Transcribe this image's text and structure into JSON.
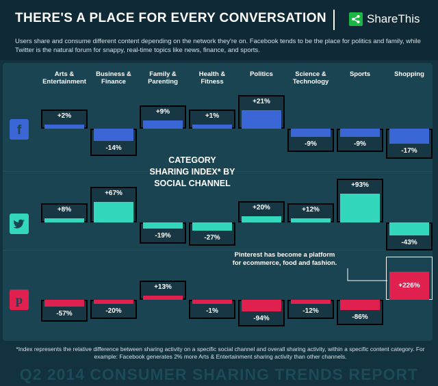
{
  "header": {
    "title": "THERE'S A PLACE FOR EVERY CONVERSATION",
    "brand_name": "ShareThis",
    "brand_icon": "share-icon",
    "intro": "Users share and consume different content depending on the network they're on. Facebook tends to be the place for politics and family, while Twitter is the natural forum for snappy, real-time topics like news, finance, and sports."
  },
  "chart_data": {
    "type": "bar",
    "title": "CATEGORY SHARING INDEX* BY SOCIAL CHANNEL",
    "categories": [
      "Arts & Entertainment",
      "Business & Finance",
      "Family & Parenting",
      "Health & Fitness",
      "Politics",
      "Science & Technology",
      "Sports",
      "Shopping"
    ],
    "series": [
      {
        "name": "Facebook",
        "icon": "facebook-icon",
        "color": "#3a66d6",
        "values": [
          2,
          -14,
          9,
          1,
          21,
          -9,
          -9,
          -17
        ]
      },
      {
        "name": "Twitter",
        "icon": "twitter-icon",
        "color": "#33d7bb",
        "values": [
          8,
          67,
          -19,
          -27,
          20,
          12,
          93,
          -43
        ]
      },
      {
        "name": "Pinterest",
        "icon": "pinterest-icon",
        "color": "#e0214f",
        "values": [
          -57,
          -20,
          13,
          -1,
          -94,
          -12,
          -86,
          226
        ]
      }
    ],
    "labels": [
      [
        "+2%",
        "-14%",
        "+9%",
        "+1%",
        "+21%",
        "-9%",
        "-9%",
        "-17%"
      ],
      [
        "+8%",
        "+67%",
        "-19%",
        "-27%",
        "+20%",
        "+12%",
        "+93%",
        "-43%"
      ],
      [
        "-57%",
        "-20%",
        "+13%",
        "-1%",
        "-94%",
        "-12%",
        "-86%",
        "+226%"
      ]
    ],
    "annotation": "Pinterest has become a platform for ecommerce, food and fashion."
  },
  "footnote": "*Index represents the relative difference between sharing activity on a specific social channel and overall sharing activity, within a specific content category. For example: Facebook generates 2% more Arts & Entertainment sharing activity than other channels.",
  "footer_title": "Q2 2014 CONSUMER SHARING TRENDS REPORT"
}
